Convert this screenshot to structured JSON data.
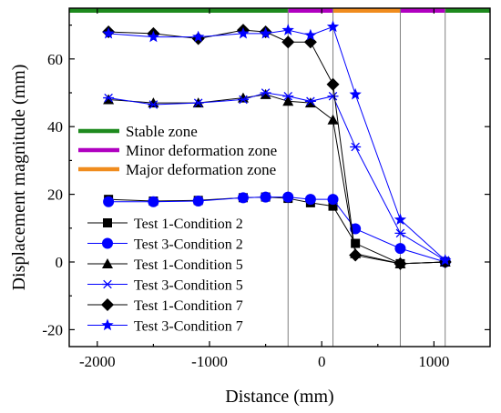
{
  "chart_data": {
    "type": "line",
    "xlabel": "Distance (mm)",
    "ylabel": "Displacement magnitude (mm)",
    "xlim": [
      -2250,
      1500
    ],
    "ylim": [
      -25,
      75
    ],
    "xticks": [
      -2000,
      -1000,
      0,
      1000
    ],
    "yticks": [
      -20,
      0,
      20,
      40,
      60
    ],
    "xtick_labels": [
      "-2000",
      "-1000",
      "0",
      "1000"
    ],
    "ytick_labels": [
      "-20",
      "0",
      "20",
      "40",
      "60"
    ],
    "zone_boundaries": [
      -300,
      100,
      700,
      1100
    ],
    "zones": [
      {
        "name": "Stable zone",
        "color": "#1e8a1e",
        "ranges": [
          [
            -2250,
            -300
          ],
          [
            1100,
            1500
          ]
        ]
      },
      {
        "name": "Minor deformation zone",
        "color": "#b000c0",
        "ranges": [
          [
            -300,
            100
          ],
          [
            700,
            1100
          ]
        ]
      },
      {
        "name": "Major deformation zone",
        "color": "#f08c1e",
        "ranges": [
          [
            100,
            700
          ]
        ]
      }
    ],
    "series": [
      {
        "name": "Test 1-Condition 2",
        "color": "#000000",
        "marker": "square",
        "x": [
          -1900,
          -1500,
          -1100,
          -700,
          -500,
          -300,
          -100,
          100,
          300,
          700,
          1100
        ],
        "y": [
          18.5,
          18.0,
          18.2,
          19.0,
          19.2,
          18.8,
          17.5,
          16.5,
          5.5,
          -0.5,
          0.0
        ]
      },
      {
        "name": "Test 3-Condition 2",
        "color": "#0000ff",
        "marker": "circle",
        "x": [
          -1900,
          -1500,
          -1100,
          -700,
          -500,
          -300,
          -100,
          100,
          300,
          700,
          1100
        ],
        "y": [
          17.8,
          17.8,
          18.0,
          19.0,
          19.2,
          19.2,
          18.5,
          18.5,
          9.8,
          4.0,
          0.0
        ]
      },
      {
        "name": "Test 1-Condition 5",
        "color": "#000000",
        "marker": "triangle",
        "x": [
          -1900,
          -1500,
          -1100,
          -700,
          -500,
          -300,
          -100,
          100,
          300,
          700,
          1100
        ],
        "y": [
          48.0,
          47.0,
          47.0,
          48.5,
          49.5,
          47.5,
          47.0,
          42.0,
          2.5,
          -0.5,
          0.0
        ]
      },
      {
        "name": "Test 3-Condition 5",
        "color": "#0000ff",
        "marker": "asterisk",
        "x": [
          -1900,
          -1500,
          -1100,
          -700,
          -500,
          -300,
          -100,
          100,
          300,
          700,
          1100
        ],
        "y": [
          48.5,
          46.5,
          47.0,
          48.0,
          50.0,
          49.0,
          47.5,
          49.0,
          34.0,
          8.5,
          0.5
        ]
      },
      {
        "name": "Test 1-Condition 7",
        "color": "#000000",
        "marker": "diamond",
        "x": [
          -1900,
          -1500,
          -1100,
          -700,
          -500,
          -300,
          -100,
          100,
          300,
          700,
          1100
        ],
        "y": [
          68.0,
          67.5,
          66.0,
          68.5,
          68.0,
          65.0,
          65.0,
          52.5,
          2.0,
          -0.5,
          0.0
        ]
      },
      {
        "name": "Test 3-Condition 7",
        "color": "#0000ff",
        "marker": "star",
        "x": [
          -1900,
          -1500,
          -1100,
          -700,
          -500,
          -300,
          -100,
          100,
          300,
          700,
          1100
        ],
        "y": [
          67.5,
          66.5,
          66.5,
          67.5,
          67.5,
          68.5,
          67.0,
          69.5,
          49.5,
          12.5,
          0.5
        ]
      }
    ],
    "grid": false,
    "legend_placement": "bottom-left",
    "zone_legend_placement": "center-left"
  }
}
